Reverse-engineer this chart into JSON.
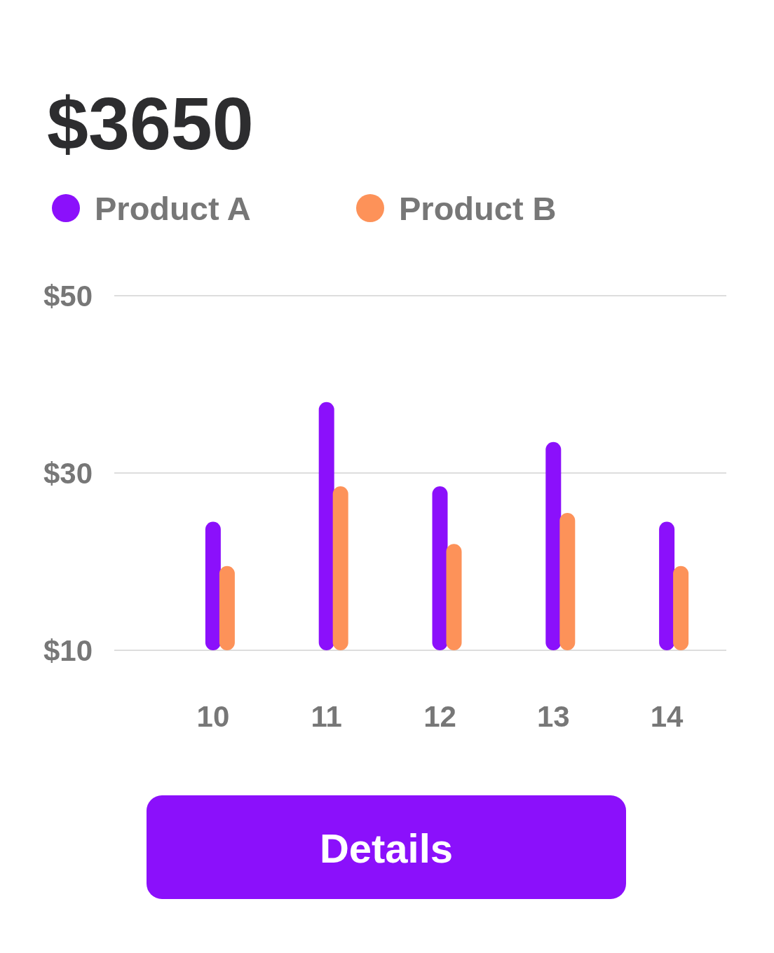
{
  "chart_data": {
    "type": "bar",
    "title": "$3650",
    "categories": [
      "10",
      "11",
      "12",
      "13",
      "14"
    ],
    "series": [
      {
        "name": "Product A",
        "color": "#8b10fb",
        "values": [
          24.5,
          38,
          28.5,
          33.5,
          24.5
        ]
      },
      {
        "name": "Product B",
        "color": "#fd9259",
        "values": [
          19.5,
          28.5,
          22,
          25.5,
          19.5
        ]
      }
    ],
    "ylim": [
      10,
      50
    ],
    "yticks": [
      {
        "value": 10,
        "label": "$10"
      },
      {
        "value": 30,
        "label": "$30"
      },
      {
        "value": 50,
        "label": "$50"
      }
    ],
    "grid": "y",
    "legend": "top left",
    "annotations": [
      "Details"
    ]
  }
}
